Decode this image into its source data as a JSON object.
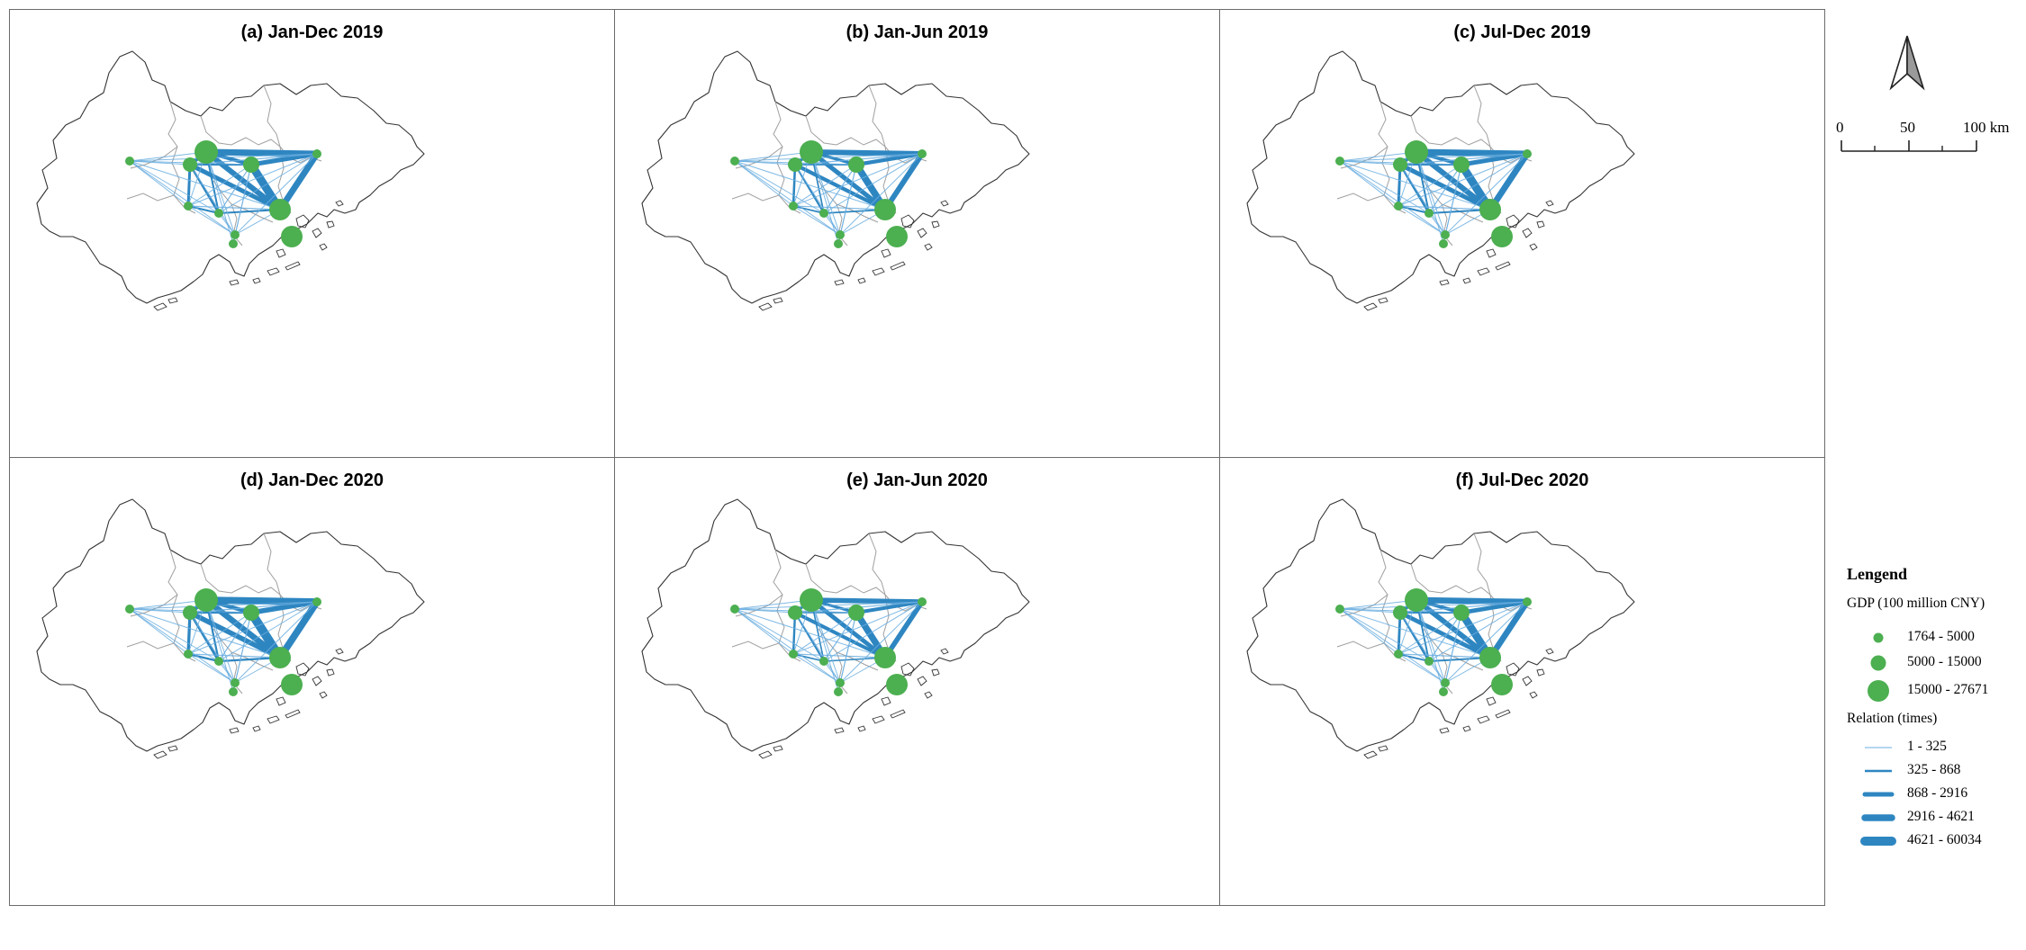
{
  "panels": [
    {
      "id": "a",
      "title": "(a) Jan-Dec 2019"
    },
    {
      "id": "b",
      "title": "(b) Jan-Jun 2019"
    },
    {
      "id": "c",
      "title": "(c) Jul-Dec 2019"
    },
    {
      "id": "d",
      "title": "(d) Jan-Dec 2020"
    },
    {
      "id": "e",
      "title": "(e) Jan-Jun 2020"
    },
    {
      "id": "f",
      "title": "(f) Jul-Dec 2020"
    }
  ],
  "scale_bar": {
    "labels": [
      "0",
      "50",
      "100 km"
    ]
  },
  "legend": {
    "title": "Lengend",
    "gdp_title": "GDP (100 million CNY)",
    "gdp_classes": [
      "1764 - 5000",
      "5000 - 15000",
      "15000 - 27671"
    ],
    "relation_title": "Relation (times)",
    "relation_classes": [
      "1 - 325",
      "325 - 868",
      "868 - 2916",
      "2916 - 4621",
      "4621 - 60034"
    ]
  },
  "colors": {
    "node": "#4caf50",
    "edge": "#2e86c1",
    "edge_light": "#6aaee0",
    "boundary": "#333333",
    "inner_boundary": "#a0a0a0",
    "frame": "#6b6b6b"
  },
  "icons": {
    "north_arrow": "north-arrow-icon"
  }
}
